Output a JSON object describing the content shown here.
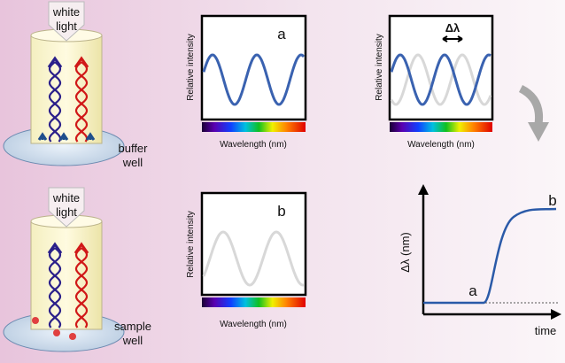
{
  "panels": {
    "top_left": {
      "lamp_label": [
        "white",
        "light"
      ],
      "well_label": [
        "buffer",
        "well"
      ]
    },
    "bottom_left": {
      "lamp_label": [
        "white",
        "light"
      ],
      "well_label": [
        "sample",
        "well"
      ]
    },
    "spectrum_a": {
      "label": "a",
      "y_label": "Relative intensity",
      "x_label": "Wavelength (nm)"
    },
    "spectrum_b": {
      "label": "b",
      "y_label": "Relative intensity",
      "x_label": "Wavelength (nm)"
    },
    "spectrum_shift": {
      "shift_label": "Δλ",
      "y_label": "Relative intensity",
      "x_label": "Wavelength (nm)"
    },
    "sensorgram": {
      "y_label": "Δλ (nm)",
      "x_label": "time",
      "start_label": "a",
      "end_label": "b"
    }
  }
}
